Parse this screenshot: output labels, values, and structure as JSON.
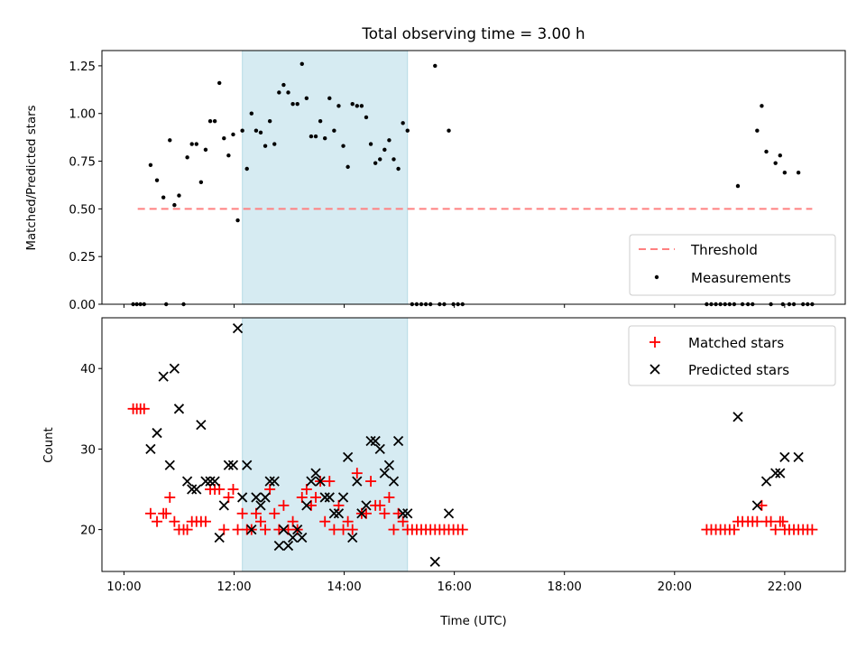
{
  "figure": {
    "title": "Total observing time = 3.00 h"
  },
  "chart_data": [
    {
      "type": "scatter",
      "panel": "top",
      "ylabel": "Matched/Predicted stars",
      "xlabel": "",
      "xlim_hours": [
        9.6,
        23.1
      ],
      "ylim": [
        0,
        1.33
      ],
      "yticks": [
        "0.00",
        "0.25",
        "0.50",
        "0.75",
        "1.00",
        "1.25"
      ],
      "shaded_interval": [
        "12:09",
        "15:09"
      ],
      "legend_position": "lower right",
      "threshold": {
        "name": "Threshold",
        "y": 0.5,
        "x_range": [
          "10:15",
          "22:30"
        ],
        "color": "#ff8080"
      },
      "series": [
        {
          "name": "Measurements",
          "color": "#000000",
          "points": [
            [
              "10:10",
              0
            ],
            [
              "10:14",
              0
            ],
            [
              "10:18",
              0
            ],
            [
              "10:22",
              0
            ],
            [
              "10:29",
              0.73
            ],
            [
              "10:36",
              0.65
            ],
            [
              "10:43",
              0.56
            ],
            [
              "10:46",
              0
            ],
            [
              "10:50",
              0.86
            ],
            [
              "10:55",
              0.52
            ],
            [
              "11:00",
              0.57
            ],
            [
              "11:05",
              0
            ],
            [
              "11:09",
              0.77
            ],
            [
              "11:14",
              0.84
            ],
            [
              "11:19",
              0.84
            ],
            [
              "11:24",
              0.64
            ],
            [
              "11:29",
              0.81
            ],
            [
              "11:34",
              0.96
            ],
            [
              "11:39",
              0.96
            ],
            [
              "11:44",
              1.16
            ],
            [
              "11:49",
              0.87
            ],
            [
              "11:54",
              0.78
            ],
            [
              "11:59",
              0.89
            ],
            [
              "12:04",
              0.44
            ],
            [
              "12:09",
              0.91
            ],
            [
              "12:14",
              0.71
            ],
            [
              "12:19",
              1.0
            ],
            [
              "12:24",
              0.91
            ],
            [
              "12:29",
              0.9
            ],
            [
              "12:34",
              0.83
            ],
            [
              "12:39",
              0.96
            ],
            [
              "12:44",
              0.84
            ],
            [
              "12:49",
              1.11
            ],
            [
              "12:54",
              1.15
            ],
            [
              "12:59",
              1.11
            ],
            [
              "13:04",
              1.05
            ],
            [
              "13:09",
              1.05
            ],
            [
              "13:14",
              1.26
            ],
            [
              "13:19",
              1.08
            ],
            [
              "13:24",
              0.88
            ],
            [
              "13:29",
              0.88
            ],
            [
              "13:34",
              0.96
            ],
            [
              "13:39",
              0.87
            ],
            [
              "13:44",
              1.08
            ],
            [
              "13:49",
              0.91
            ],
            [
              "13:54",
              1.04
            ],
            [
              "13:59",
              0.83
            ],
            [
              "14:04",
              0.72
            ],
            [
              "14:09",
              1.05
            ],
            [
              "14:14",
              1.04
            ],
            [
              "14:19",
              1.04
            ],
            [
              "14:24",
              0.98
            ],
            [
              "14:29",
              0.84
            ],
            [
              "14:34",
              0.74
            ],
            [
              "14:39",
              0.76
            ],
            [
              "14:44",
              0.81
            ],
            [
              "14:49",
              0.86
            ],
            [
              "14:54",
              0.76
            ],
            [
              "14:59",
              0.71
            ],
            [
              "15:04",
              0.95
            ],
            [
              "15:09",
              0.91
            ],
            [
              "15:14",
              0
            ],
            [
              "15:19",
              0
            ],
            [
              "15:24",
              0
            ],
            [
              "15:29",
              0
            ],
            [
              "15:34",
              0
            ],
            [
              "15:39",
              1.25
            ],
            [
              "15:44",
              0
            ],
            [
              "15:49",
              0
            ],
            [
              "15:54",
              0.91
            ],
            [
              "15:59",
              0
            ],
            [
              "16:04",
              0
            ],
            [
              "16:09",
              0
            ],
            [
              "20:35",
              0
            ],
            [
              "20:40",
              0
            ],
            [
              "20:45",
              0
            ],
            [
              "20:50",
              0
            ],
            [
              "20:55",
              0
            ],
            [
              "21:00",
              0
            ],
            [
              "21:05",
              0
            ],
            [
              "21:09",
              0.62
            ],
            [
              "21:14",
              0
            ],
            [
              "21:20",
              0
            ],
            [
              "21:25",
              0
            ],
            [
              "21:30",
              0.91
            ],
            [
              "21:35",
              1.04
            ],
            [
              "21:40",
              0.8
            ],
            [
              "21:45",
              0
            ],
            [
              "21:50",
              0.74
            ],
            [
              "21:55",
              0.78
            ],
            [
              "21:58",
              0
            ],
            [
              "22:00",
              0.69
            ],
            [
              "22:05",
              0
            ],
            [
              "22:10",
              0
            ],
            [
              "22:15",
              0.69
            ],
            [
              "22:20",
              0
            ],
            [
              "22:25",
              0
            ],
            [
              "22:30",
              0
            ]
          ]
        }
      ]
    },
    {
      "type": "scatter",
      "panel": "bottom",
      "ylabel": "Count",
      "xlabel": "Time (UTC)",
      "xlim_hours": [
        9.6,
        23.1
      ],
      "ylim": [
        14.8,
        46.3
      ],
      "yticks": [
        "20",
        "30",
        "40"
      ],
      "xticks": [
        "10:00",
        "12:00",
        "14:00",
        "16:00",
        "18:00",
        "20:00",
        "22:00"
      ],
      "shaded_interval": [
        "12:09",
        "15:09"
      ],
      "legend_position": "upper right",
      "series": [
        {
          "name": "Matched stars",
          "marker": "plus",
          "color": "#ff0000",
          "points": [
            [
              "10:10",
              35
            ],
            [
              "10:14",
              35
            ],
            [
              "10:18",
              35
            ],
            [
              "10:22",
              35
            ],
            [
              "10:29",
              22
            ],
            [
              "10:36",
              21
            ],
            [
              "10:43",
              22
            ],
            [
              "10:46",
              22
            ],
            [
              "10:50",
              24
            ],
            [
              "10:55",
              21
            ],
            [
              "11:00",
              20
            ],
            [
              "11:05",
              20
            ],
            [
              "11:09",
              20
            ],
            [
              "11:14",
              21
            ],
            [
              "11:19",
              21
            ],
            [
              "11:24",
              21
            ],
            [
              "11:29",
              21
            ],
            [
              "11:34",
              25
            ],
            [
              "11:39",
              25
            ],
            [
              "11:44",
              25
            ],
            [
              "11:49",
              20
            ],
            [
              "11:54",
              24
            ],
            [
              "11:59",
              25
            ],
            [
              "12:04",
              20
            ],
            [
              "12:09",
              22
            ],
            [
              "12:14",
              20
            ],
            [
              "12:19",
              20
            ],
            [
              "12:24",
              22
            ],
            [
              "12:29",
              21
            ],
            [
              "12:34",
              20
            ],
            [
              "12:39",
              25
            ],
            [
              "12:44",
              22
            ],
            [
              "12:49",
              20
            ],
            [
              "12:54",
              23
            ],
            [
              "12:59",
              20
            ],
            [
              "13:04",
              21
            ],
            [
              "13:09",
              20
            ],
            [
              "13:14",
              24
            ],
            [
              "13:19",
              25
            ],
            [
              "13:24",
              23
            ],
            [
              "13:29",
              24
            ],
            [
              "13:34",
              26
            ],
            [
              "13:39",
              21
            ],
            [
              "13:44",
              26
            ],
            [
              "13:49",
              20
            ],
            [
              "13:54",
              23
            ],
            [
              "13:59",
              20
            ],
            [
              "14:04",
              21
            ],
            [
              "14:09",
              20
            ],
            [
              "14:14",
              27
            ],
            [
              "14:19",
              22
            ],
            [
              "14:24",
              22
            ],
            [
              "14:29",
              26
            ],
            [
              "14:34",
              23
            ],
            [
              "14:39",
              23
            ],
            [
              "14:44",
              22
            ],
            [
              "14:49",
              24
            ],
            [
              "14:54",
              20
            ],
            [
              "14:59",
              22
            ],
            [
              "15:04",
              21
            ],
            [
              "15:09",
              20
            ],
            [
              "15:14",
              20
            ],
            [
              "15:19",
              20
            ],
            [
              "15:24",
              20
            ],
            [
              "15:29",
              20
            ],
            [
              "15:34",
              20
            ],
            [
              "15:39",
              20
            ],
            [
              "15:44",
              20
            ],
            [
              "15:49",
              20
            ],
            [
              "15:54",
              20
            ],
            [
              "15:59",
              20
            ],
            [
              "16:04",
              20
            ],
            [
              "16:09",
              20
            ],
            [
              "20:35",
              20
            ],
            [
              "20:40",
              20
            ],
            [
              "20:45",
              20
            ],
            [
              "20:50",
              20
            ],
            [
              "20:55",
              20
            ],
            [
              "21:00",
              20
            ],
            [
              "21:05",
              20
            ],
            [
              "21:09",
              21
            ],
            [
              "21:14",
              21
            ],
            [
              "21:20",
              21
            ],
            [
              "21:25",
              21
            ],
            [
              "21:30",
              21
            ],
            [
              "21:35",
              23
            ],
            [
              "21:40",
              21
            ],
            [
              "21:45",
              21
            ],
            [
              "21:50",
              20
            ],
            [
              "21:55",
              21
            ],
            [
              "21:58",
              21
            ],
            [
              "22:00",
              20
            ],
            [
              "22:05",
              20
            ],
            [
              "22:10",
              20
            ],
            [
              "22:15",
              20
            ],
            [
              "22:20",
              20
            ],
            [
              "22:25",
              20
            ],
            [
              "22:30",
              20
            ]
          ]
        },
        {
          "name": "Predicted stars",
          "marker": "x",
          "color": "#000000",
          "points": [
            [
              "10:29",
              30
            ],
            [
              "10:36",
              32
            ],
            [
              "10:43",
              39
            ],
            [
              "10:55",
              40
            ],
            [
              "10:50",
              28
            ],
            [
              "11:00",
              35
            ],
            [
              "11:09",
              26
            ],
            [
              "11:14",
              25
            ],
            [
              "11:19",
              25
            ],
            [
              "11:24",
              33
            ],
            [
              "11:29",
              26
            ],
            [
              "11:34",
              26
            ],
            [
              "11:39",
              26
            ],
            [
              "11:44",
              19
            ],
            [
              "11:49",
              23
            ],
            [
              "11:54",
              28
            ],
            [
              "11:59",
              28
            ],
            [
              "12:04",
              45
            ],
            [
              "12:09",
              24
            ],
            [
              "12:14",
              28
            ],
            [
              "12:19",
              20
            ],
            [
              "12:24",
              24
            ],
            [
              "12:29",
              23
            ],
            [
              "12:34",
              24
            ],
            [
              "12:39",
              26
            ],
            [
              "12:44",
              26
            ],
            [
              "12:49",
              18
            ],
            [
              "12:54",
              20
            ],
            [
              "12:59",
              18
            ],
            [
              "13:04",
              19
            ],
            [
              "13:09",
              20
            ],
            [
              "13:14",
              19
            ],
            [
              "13:19",
              23
            ],
            [
              "13:24",
              26
            ],
            [
              "13:29",
              27
            ],
            [
              "13:34",
              26
            ],
            [
              "13:39",
              24
            ],
            [
              "13:44",
              24
            ],
            [
              "13:49",
              22
            ],
            [
              "13:54",
              22
            ],
            [
              "13:59",
              24
            ],
            [
              "14:04",
              29
            ],
            [
              "14:09",
              19
            ],
            [
              "14:14",
              26
            ],
            [
              "14:19",
              22
            ],
            [
              "14:24",
              23
            ],
            [
              "14:29",
              31
            ],
            [
              "14:34",
              31
            ],
            [
              "14:39",
              30
            ],
            [
              "14:44",
              27
            ],
            [
              "14:49",
              28
            ],
            [
              "14:54",
              26
            ],
            [
              "14:59",
              31
            ],
            [
              "15:04",
              22
            ],
            [
              "15:09",
              22
            ],
            [
              "15:39",
              16
            ],
            [
              "15:54",
              22
            ],
            [
              "21:09",
              34
            ],
            [
              "21:30",
              23
            ],
            [
              "21:40",
              26
            ],
            [
              "21:50",
              27
            ],
            [
              "21:55",
              27
            ],
            [
              "22:00",
              29
            ],
            [
              "22:15",
              29
            ]
          ]
        }
      ]
    }
  ]
}
